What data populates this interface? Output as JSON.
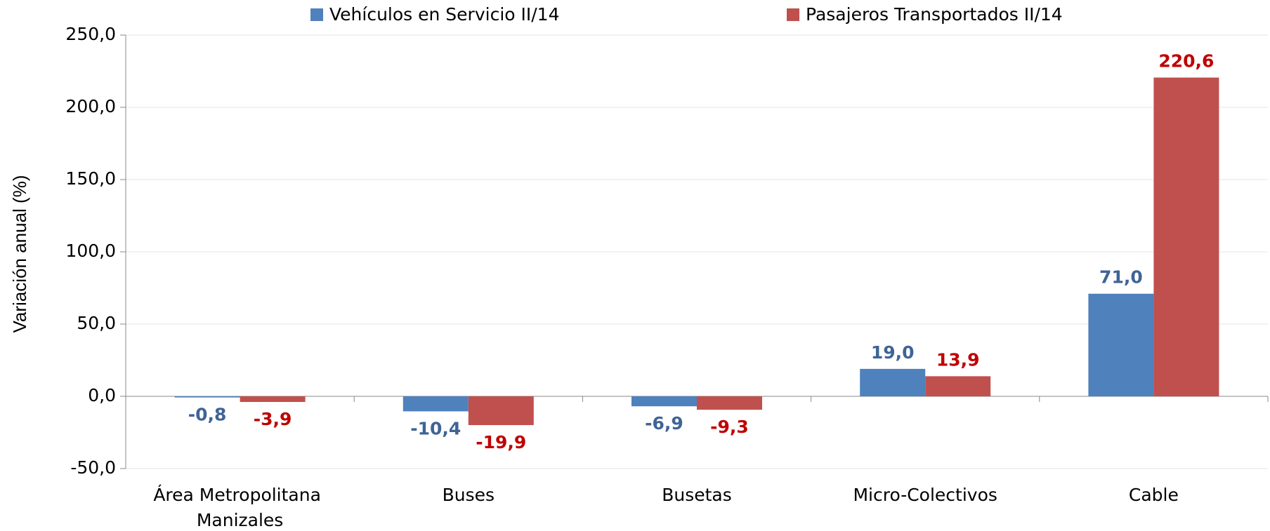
{
  "chart_data": {
    "type": "bar",
    "y_label": "Variación anual (%)",
    "categories": [
      "Área Metropolitana Manizales",
      "Buses",
      "Busetas",
      "Micro-Colectivos",
      "Cable"
    ],
    "series": [
      {
        "name": "Vehículos en Servicio II/14",
        "color": "#4f81bd",
        "label_color": "#3f6496",
        "values": [
          -0.8,
          -10.4,
          -6.9,
          19.0,
          71.0
        ],
        "value_labels": [
          "-0,8",
          "-10,4",
          "-6,9",
          "19,0",
          "71,0"
        ]
      },
      {
        "name": "Pasajeros Transportados II/14",
        "color": "#c0504d",
        "label_color": "#c00000",
        "values": [
          -3.9,
          -19.9,
          -9.3,
          13.9,
          220.6
        ],
        "value_labels": [
          "-3,9",
          "-19,9",
          "-9,3",
          "13,9",
          "220,6"
        ]
      }
    ],
    "ylim": [
      -50,
      250
    ],
    "yticks": [
      {
        "value": -50,
        "label": "-50,0"
      },
      {
        "value": 0,
        "label": "0,0"
      },
      {
        "value": 50,
        "label": "50,0"
      },
      {
        "value": 100,
        "label": "100,0"
      },
      {
        "value": 150,
        "label": "150,0"
      },
      {
        "value": 200,
        "label": "200,0"
      },
      {
        "value": 250,
        "label": "250,0"
      }
    ],
    "grid": true,
    "legend": "top"
  }
}
